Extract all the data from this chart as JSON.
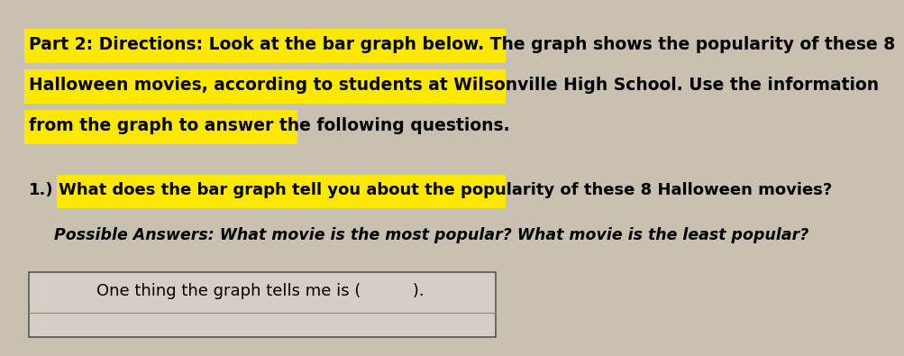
{
  "background_color": "#c8c0b0",
  "highlight_color": "#FFE800",
  "text_color": "#000000",
  "line1": "Part 2: Directions: Look at the bar graph below. The graph shows the popularity of these 8",
  "line2": "Halloween movies, according to students at Wilsonville High School. Use the information",
  "line3": "from the graph to answer the following questions.",
  "question_number": "1.)",
  "question_text": "What does the bar graph tell you about the popularity of these 8 Halloween movies?",
  "possible_answers_label": "Possible Answers:",
  "possible_answers_text": "What movie is the most popular? What movie is the least popular?",
  "box_text": "One thing the graph tells me is (          ).",
  "font_size_main": 13.5,
  "font_size_question": 13.0,
  "font_size_possible": 12.5,
  "font_size_box": 13.0
}
